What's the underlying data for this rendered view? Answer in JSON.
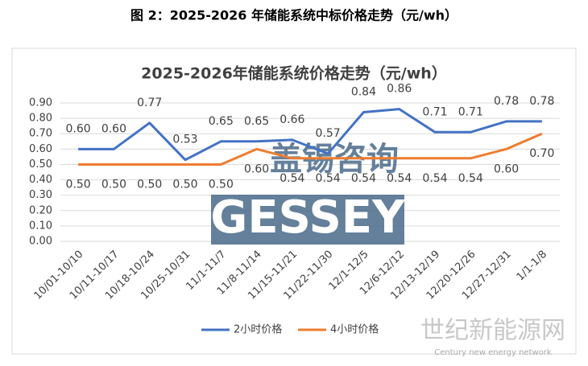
{
  "figure_title": "图 2：2025-2026 年储能系统中标价格走势（元/wh）",
  "chart_data": {
    "type": "line",
    "title": "2025-2026年储能系统价格走势（元/wh）",
    "categories": [
      "10/01-10/10",
      "10/11-10/17",
      "10/18-10/24",
      "10/25-10/31",
      "11/1-11/7",
      "11/8-11/14",
      "11/15-11/21",
      "11/22-11/30",
      "12/1-12/5",
      "12/6-12/12",
      "12/13-12/19",
      "12/20-12/26",
      "12/27-12/31",
      "1/1-1/8"
    ],
    "series": [
      {
        "name": "2小时价格",
        "color": "#4472c4",
        "values": [
          0.6,
          0.6,
          0.77,
          0.53,
          0.65,
          0.65,
          0.66,
          0.57,
          0.84,
          0.86,
          0.71,
          0.71,
          0.78,
          0.78
        ],
        "value_labels": [
          "0.60",
          "0.60",
          "0.77",
          "0.53",
          "0.65",
          "0.65",
          "0.66",
          "0.57",
          "0.84",
          "0.86",
          "0.71",
          "0.71",
          "0.78",
          "0.78"
        ]
      },
      {
        "name": "4小时价格",
        "color": "#ed7d31",
        "values": [
          0.5,
          0.5,
          0.5,
          0.5,
          0.5,
          0.6,
          0.54,
          0.54,
          0.54,
          0.54,
          0.54,
          0.54,
          0.6,
          0.7
        ],
        "value_labels": [
          "0.50",
          "0.50",
          "0.50",
          "0.50",
          "0.50",
          "0.60",
          "0.54",
          "0.54",
          "0.54",
          "0.54",
          "0.54",
          "0.54",
          "0.60",
          "0.70"
        ]
      }
    ],
    "ylim": [
      0,
      0.9
    ],
    "yticks": [
      {
        "value": 0,
        "label": "0.00"
      },
      {
        "value": 0.1,
        "label": "0.10"
      },
      {
        "value": 0.2,
        "label": "0.20"
      },
      {
        "value": 0.3,
        "label": "0.30"
      },
      {
        "value": 0.4,
        "label": "0.40"
      },
      {
        "value": 0.5,
        "label": "0.50"
      },
      {
        "value": 0.6,
        "label": "0.60"
      },
      {
        "value": 0.7,
        "label": "0.70"
      },
      {
        "value": 0.8,
        "label": "0.80"
      },
      {
        "value": 0.9,
        "label": "0.90"
      }
    ],
    "grid": true,
    "legend": "bottom"
  },
  "watermarks": {
    "brand_cn": "盖锡咨询",
    "brand_en": "GESSEY",
    "site_cn": "世纪新能源网",
    "site_en": "Century new energy network"
  }
}
